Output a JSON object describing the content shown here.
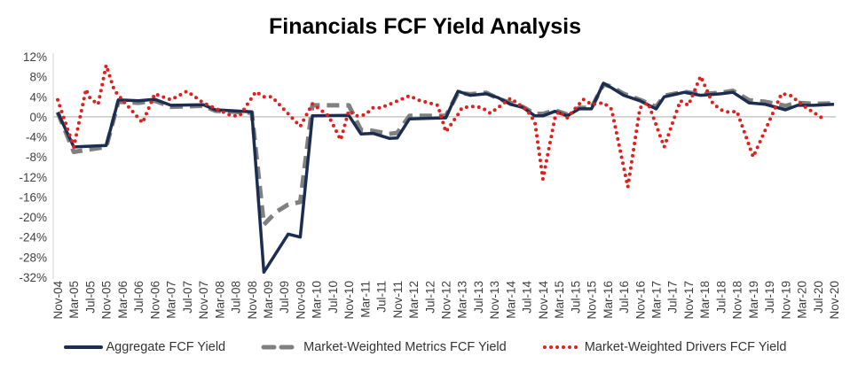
{
  "chart_data": {
    "type": "line",
    "title": "Financials FCF Yield Analysis",
    "xlabel": "",
    "ylabel": "",
    "ylim": [
      -32,
      12
    ],
    "yticks": [
      "12%",
      "8%",
      "4%",
      "0%",
      "-4%",
      "-8%",
      "-12%",
      "-16%",
      "-20%",
      "-24%",
      "-28%",
      "-32%"
    ],
    "ytick_values": [
      12,
      8,
      4,
      0,
      -4,
      -8,
      -12,
      -16,
      -20,
      -24,
      -28,
      -32
    ],
    "xticks": [
      "Nov-04",
      "Mar-05",
      "Jul-05",
      "Nov-05",
      "Mar-06",
      "Jul-06",
      "Nov-06",
      "Mar-07",
      "Jul-07",
      "Nov-07",
      "Mar-08",
      "Jul-08",
      "Nov-08",
      "Mar-09",
      "Jul-09",
      "Nov-09",
      "Mar-10",
      "Jul-10",
      "Nov-10",
      "Mar-11",
      "Jul-11",
      "Nov-11",
      "Mar-12",
      "Jul-12",
      "Nov-12",
      "Mar-13",
      "Jul-13",
      "Nov-13",
      "Mar-14",
      "Jul-14",
      "Nov-14",
      "Mar-15",
      "Jul-15",
      "Nov-15",
      "Mar-16",
      "Jul-16",
      "Nov-16",
      "Mar-17",
      "Jul-17",
      "Nov-17",
      "Mar-18",
      "Jul-18",
      "Nov-18",
      "Mar-19",
      "Jul-19",
      "Nov-19",
      "Mar-20",
      "Jul-20",
      "Nov-20"
    ],
    "grid": false,
    "legend_position": "bottom",
    "series": [
      {
        "name": "Aggregate FCF Yield",
        "color": "#1c2d4f",
        "style": "solid",
        "points": [
          [
            "Nov-04",
            0.9
          ],
          [
            "Mar-05",
            -6
          ],
          [
            "Nov-05",
            -5.7
          ],
          [
            "Feb-06",
            3.4
          ],
          [
            "Jul-06",
            3.2
          ],
          [
            "Nov-06",
            3.5
          ],
          [
            "Mar-07",
            2.3
          ],
          [
            "Nov-07",
            2.4
          ],
          [
            "Feb-08",
            1.4
          ],
          [
            "Nov-08",
            1.0
          ],
          [
            "Feb-09",
            -31
          ],
          [
            "Aug-09",
            -23.4
          ],
          [
            "Nov-09",
            -24
          ],
          [
            "Feb-10",
            0.2
          ],
          [
            "Nov-10",
            0.3
          ],
          [
            "Feb-11",
            -3.4
          ],
          [
            "May-11",
            -3.3
          ],
          [
            "Sep-11",
            -4.3
          ],
          [
            "Nov-11",
            -4.2
          ],
          [
            "Feb-12",
            -0.4
          ],
          [
            "Nov-12",
            -0.2
          ],
          [
            "Feb-13",
            5.1
          ],
          [
            "May-13",
            4.3
          ],
          [
            "Sep-13",
            4.6
          ],
          [
            "Dec-13",
            3.8
          ],
          [
            "Mar-14",
            2.5
          ],
          [
            "Jun-14",
            1.9
          ],
          [
            "Sep-14",
            0.2
          ],
          [
            "Nov-14",
            0.2
          ],
          [
            "Feb-15",
            1.1
          ],
          [
            "May-15",
            0.2
          ],
          [
            "Aug-15",
            1.6
          ],
          [
            "Nov-15",
            1.6
          ],
          [
            "Feb-16",
            6.7
          ],
          [
            "Apr-16",
            5.8
          ],
          [
            "Jul-16",
            4.3
          ],
          [
            "Nov-16",
            3.2
          ],
          [
            "Mar-17",
            1.6
          ],
          [
            "May-17",
            4.0
          ],
          [
            "Oct-17",
            4.9
          ],
          [
            "Feb-18",
            4.3
          ],
          [
            "Jul-18",
            4.6
          ],
          [
            "Oct-18",
            4.9
          ],
          [
            "Feb-19",
            2.8
          ],
          [
            "Jun-19",
            2.5
          ],
          [
            "Nov-19",
            1.4
          ],
          [
            "Feb-20",
            2.3
          ],
          [
            "Jun-20",
            2.3
          ],
          [
            "Nov-20",
            2.5
          ]
        ]
      },
      {
        "name": "Market-Weighted Metrics FCF Yield",
        "color": "#808080",
        "style": "dashed",
        "points": [
          [
            "Nov-04",
            0.9
          ],
          [
            "Mar-05",
            -7
          ],
          [
            "Nov-05",
            -6
          ],
          [
            "Feb-06",
            3.0
          ],
          [
            "Jul-06",
            2.8
          ],
          [
            "Nov-06",
            3.2
          ],
          [
            "Mar-07",
            2.0
          ],
          [
            "Nov-07",
            2.2
          ],
          [
            "Feb-08",
            1.2
          ],
          [
            "Nov-08",
            0.8
          ],
          [
            "Feb-09",
            -21.5
          ],
          [
            "May-09",
            -19
          ],
          [
            "Aug-09",
            -17.5
          ],
          [
            "Nov-09",
            -17
          ],
          [
            "Feb-10",
            2.3
          ],
          [
            "Nov-10",
            2.3
          ],
          [
            "Feb-11",
            -2.6
          ],
          [
            "May-11",
            -2.8
          ],
          [
            "Sep-11",
            -3.4
          ],
          [
            "Nov-11",
            -3.2
          ],
          [
            "Feb-12",
            0.2
          ],
          [
            "Nov-12",
            0.2
          ],
          [
            "Feb-13",
            4.8
          ],
          [
            "May-13",
            4.5
          ],
          [
            "Sep-13",
            4.8
          ],
          [
            "Dec-13",
            3.6
          ],
          [
            "Mar-14",
            2.8
          ],
          [
            "Jun-14",
            2.0
          ],
          [
            "Sep-14",
            0.6
          ],
          [
            "Nov-14",
            0.6
          ],
          [
            "Feb-15",
            1.3
          ],
          [
            "May-15",
            0.5
          ],
          [
            "Aug-15",
            1.8
          ],
          [
            "Nov-15",
            1.8
          ],
          [
            "Feb-16",
            6.5
          ],
          [
            "Apr-16",
            6.0
          ],
          [
            "Jul-16",
            4.6
          ],
          [
            "Nov-16",
            3.4
          ],
          [
            "Mar-17",
            2.0
          ],
          [
            "May-17",
            4.2
          ],
          [
            "Oct-17",
            5.0
          ],
          [
            "Feb-18",
            4.5
          ],
          [
            "Jul-18",
            4.8
          ],
          [
            "Oct-18",
            5.2
          ],
          [
            "Feb-19",
            3.3
          ],
          [
            "Jun-19",
            3.0
          ],
          [
            "Nov-19",
            2.2
          ],
          [
            "Feb-20",
            2.8
          ],
          [
            "Jun-20",
            2.6
          ],
          [
            "Nov-20",
            2.7
          ]
        ]
      },
      {
        "name": "Market-Weighted Drivers FCF Yield",
        "color": "#e0201e",
        "style": "dotted",
        "points": [
          [
            "Nov-04",
            3.4
          ],
          [
            "Mar-05",
            -6
          ],
          [
            "Jun-05",
            5.5
          ],
          [
            "Jul-05",
            3.7
          ],
          [
            "Sep-05",
            2.5
          ],
          [
            "Nov-05",
            10.3
          ],
          [
            "Jan-06",
            5.3
          ],
          [
            "Mar-06",
            3.4
          ],
          [
            "Aug-06",
            -1.2
          ],
          [
            "Nov-06",
            4.6
          ],
          [
            "Jan-07",
            4
          ],
          [
            "Mar-07",
            3.4
          ],
          [
            "Jul-07",
            5.1
          ],
          [
            "Nov-07",
            2.8
          ],
          [
            "Jun-08",
            0.2
          ],
          [
            "Aug-08",
            0.2
          ],
          [
            "Dec-08",
            5
          ],
          [
            "Feb-09",
            4
          ],
          [
            "Apr-09",
            4
          ],
          [
            "Nov-09",
            -1.9
          ],
          [
            "Feb-10",
            2.6
          ],
          [
            "Jun-10",
            0.2
          ],
          [
            "Sep-10",
            -4.6
          ],
          [
            "Nov-10",
            1.2
          ],
          [
            "Jan-11",
            0.2
          ],
          [
            "Mar-11",
            0.4
          ],
          [
            "May-11",
            1.8
          ],
          [
            "Jul-11",
            1.8
          ],
          [
            "Feb-12",
            4.2
          ],
          [
            "Apr-12",
            3.4
          ],
          [
            "Sep-12",
            2.3
          ],
          [
            "Nov-12",
            -3
          ],
          [
            "Feb-13",
            0.5
          ],
          [
            "Mar-13",
            1.8
          ],
          [
            "Jun-13",
            2.1
          ],
          [
            "Aug-13",
            1.8
          ],
          [
            "Oct-13",
            0.7
          ],
          [
            "Mar-14",
            3.7
          ],
          [
            "Jul-14",
            1.4
          ],
          [
            "Sep-14",
            -1
          ],
          [
            "Nov-14",
            -12.4
          ],
          [
            "Feb-15",
            -0.2
          ],
          [
            "Mar-15",
            1.1
          ],
          [
            "May-15",
            -0.2
          ],
          [
            "Sep-15",
            3.5
          ],
          [
            "Nov-15",
            2.5
          ],
          [
            "Feb-16",
            2.8
          ],
          [
            "Apr-16",
            1.5
          ],
          [
            "Aug-16",
            -14
          ],
          [
            "Nov-16",
            1.8
          ],
          [
            "Jan-17",
            2.8
          ],
          [
            "May-17",
            -6
          ],
          [
            "Sep-17",
            3.2
          ],
          [
            "Nov-17",
            2.3
          ],
          [
            "Feb-18",
            8.1
          ],
          [
            "May-18",
            2.7
          ],
          [
            "Jul-18",
            1.4
          ],
          [
            "Sep-18",
            0.9
          ],
          [
            "Nov-18",
            1.1
          ],
          [
            "Mar-19",
            -8
          ],
          [
            "Oct-19",
            4.6
          ],
          [
            "Dec-19",
            4.4
          ],
          [
            "Apr-20",
            1.9
          ],
          [
            "Aug-20",
            -0.2
          ]
        ]
      }
    ]
  }
}
